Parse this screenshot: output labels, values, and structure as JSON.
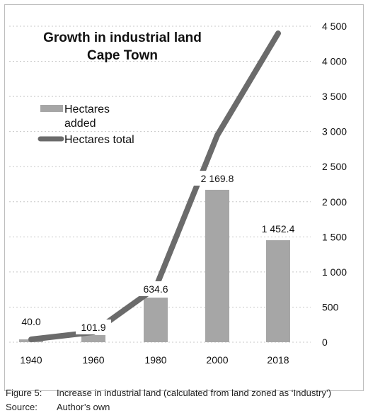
{
  "chart_data": {
    "type": "bar+line",
    "title_lines": [
      "Growth in industrial land",
      "Cape Town"
    ],
    "categories": [
      "1940",
      "1960",
      "1980",
      "2000",
      "2018"
    ],
    "series": [
      {
        "name": "Hectares added",
        "kind": "bar",
        "values": [
          40.0,
          101.9,
          634.6,
          2169.8,
          1452.4
        ],
        "labels": [
          "40.0",
          "101.9",
          "634.6",
          "2 169.8",
          "1 452.4"
        ]
      },
      {
        "name": "Hectares total",
        "kind": "line",
        "values": [
          40.0,
          141.9,
          776.5,
          2946.3,
          4398.7
        ]
      }
    ],
    "y_ticks": [
      0,
      500,
      1000,
      1500,
      2000,
      2500,
      3000,
      3500,
      4000,
      4500
    ],
    "y_tick_labels": [
      "0",
      "500",
      "1 000",
      "1 500",
      "2 000",
      "2 500",
      "3 000",
      "3 500",
      "4 000",
      "4 500"
    ],
    "ylim": [
      0,
      4500
    ],
    "y_axis_side": "right",
    "grid": "horizontal dotted",
    "legend_position": "upper-left",
    "colors": {
      "bar": "#a6a6a6",
      "line": "#6b6b6b",
      "grid": "#c8c8c8"
    }
  },
  "caption": {
    "figure_label": "Figure 5:",
    "figure_text": "Increase in industrial land (calculated from land zoned as ‘Industry’)",
    "source_label": "Source:",
    "source_text": "Author’s own"
  }
}
